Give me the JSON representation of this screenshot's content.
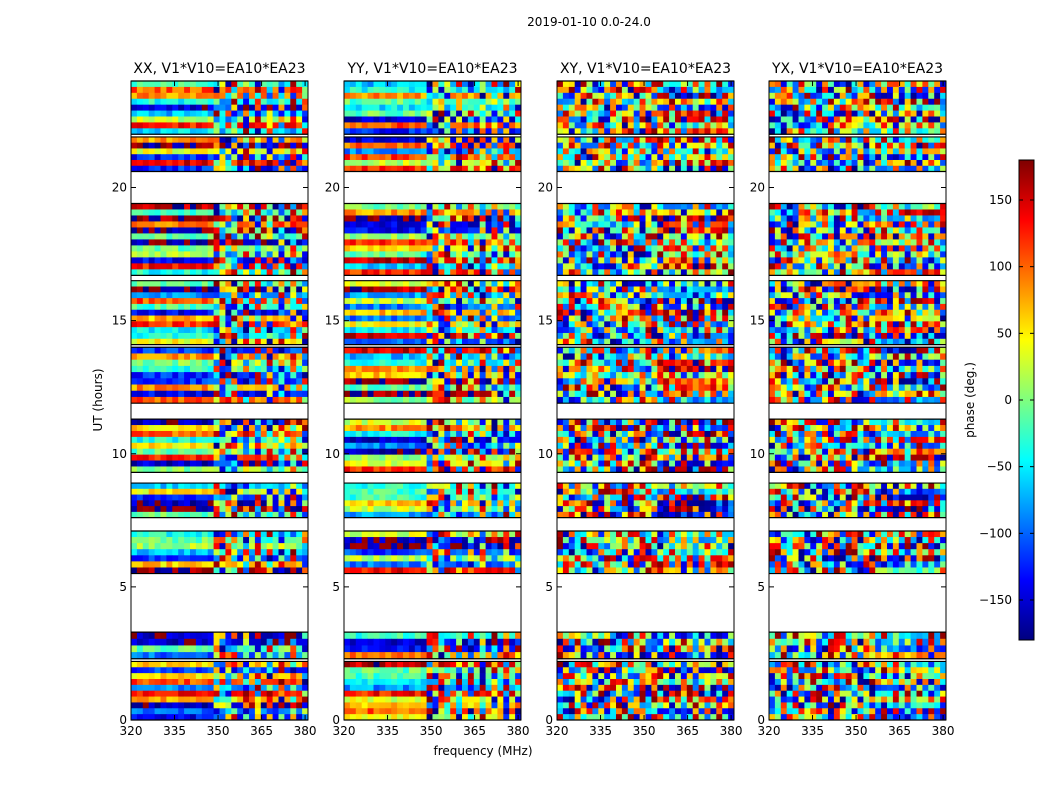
{
  "chart_data": {
    "type": "heatmap",
    "title": "2019-01-10 0.0-24.0",
    "xlabel": "frequency (MHz)",
    "ylabel": "UT (hours)",
    "xlim": [
      320,
      381
    ],
    "ylim": [
      0,
      24
    ],
    "x_ticks": [
      "320",
      "335",
      "350",
      "365",
      "380"
    ],
    "x_tick_values": [
      320,
      335,
      350,
      365,
      380
    ],
    "y_ticks": [
      "0",
      "5",
      "10",
      "15",
      "20"
    ],
    "y_tick_values": [
      0,
      5,
      10,
      15,
      20
    ],
    "colormap": "jet",
    "panels": [
      {
        "title": "XX, V1*V10=EA10*EA23"
      },
      {
        "title": "YY, V1*V10=EA10*EA23"
      },
      {
        "title": "XY, V1*V10=EA10*EA23"
      },
      {
        "title": "YX, V1*V10=EA10*EA23"
      }
    ],
    "data_blocks_hours": [
      [
        0.0,
        2.2
      ],
      [
        2.3,
        3.3
      ],
      [
        5.5,
        7.1
      ],
      [
        7.6,
        8.9
      ],
      [
        9.3,
        11.3
      ],
      [
        11.9,
        14.0
      ],
      [
        14.1,
        16.5
      ],
      [
        16.7,
        19.4
      ],
      [
        20.6,
        21.9
      ],
      [
        22.0,
        24.0
      ]
    ],
    "colorbar": {
      "label": "phase (deg.)",
      "range": [
        -180,
        180
      ],
      "ticks": [
        "150",
        "100",
        "50",
        "0",
        "−50",
        "−100",
        "−150"
      ],
      "tick_values": [
        150,
        100,
        50,
        0,
        -50,
        -100,
        -150
      ]
    }
  }
}
